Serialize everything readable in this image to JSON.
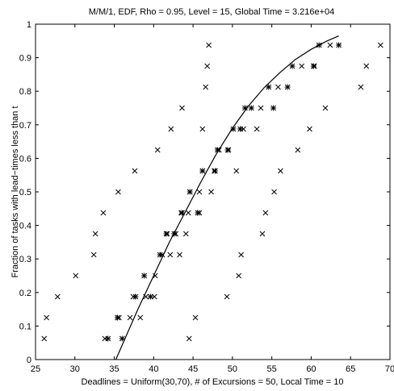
{
  "chart_data": {
    "type": "scatter",
    "title": "M/M/1, EDF, Rho = 0.95, Level = 15,  Global Time = 3.216e+04",
    "xlabel": "Deadlines = Uniform(30,70), # of Excursions = 50, Local Time = 10",
    "ylabel": "Fraction of tasks with lead−times less than t",
    "xlim": [
      25,
      70
    ],
    "ylim": [
      0,
      1
    ],
    "xticks": [
      "25",
      "30",
      "35",
      "40",
      "45",
      "50",
      "55",
      "60",
      "65",
      "70"
    ],
    "yticks": [
      "0",
      "0.1",
      "0.2",
      "0.3",
      "0.4",
      "0.5",
      "0.6",
      "0.7",
      "0.8",
      "0.9",
      "1"
    ],
    "grid": false,
    "series": [
      {
        "marker": "x",
        "color": "#000000",
        "points": [
          [
            26.1,
            0.0625
          ],
          [
            26.4,
            0.125
          ],
          [
            27.8,
            0.1875
          ],
          [
            30.1,
            0.25
          ],
          [
            32.4,
            0.3125
          ],
          [
            32.6,
            0.375
          ],
          [
            33.6,
            0.4375
          ],
          [
            35.5,
            0.5
          ],
          [
            37.6,
            0.5625
          ],
          [
            40.5,
            0.625
          ],
          [
            42.2,
            0.6875
          ],
          [
            43.6,
            0.75
          ],
          [
            46.6,
            0.8125
          ],
          [
            46.8,
            0.875
          ],
          [
            47.0,
            0.9375
          ],
          [
            33.8,
            0.0625
          ],
          [
            35.6,
            0.125
          ],
          [
            37.0,
            0.125
          ],
          [
            37.4,
            0.1875
          ],
          [
            38.3,
            0.125
          ],
          [
            39.0,
            0.1875
          ],
          [
            40.1,
            0.1875
          ],
          [
            40.2,
            0.25
          ],
          [
            41.1,
            0.3125
          ],
          [
            41.7,
            0.375
          ],
          [
            42.1,
            0.3125
          ],
          [
            42.8,
            0.375
          ],
          [
            43.3,
            0.3125
          ],
          [
            43.5,
            0.4375
          ],
          [
            44.1,
            0.375
          ],
          [
            44.4,
            0.4375
          ],
          [
            44.5,
            0.0625
          ],
          [
            44.6,
            0.5
          ],
          [
            45.3,
            0.125
          ],
          [
            45.8,
            0.4375
          ],
          [
            45.8,
            0.5
          ],
          [
            46.2,
            0.5625
          ],
          [
            46.2,
            0.6875
          ],
          [
            47.3,
            0.5
          ],
          [
            47.7,
            0.5625
          ],
          [
            48.3,
            0.625
          ],
          [
            49.3,
            0.1875
          ],
          [
            49.5,
            0.625
          ],
          [
            50.5,
            0.5625
          ],
          [
            50.8,
            0.25
          ],
          [
            51.1,
            0.3125
          ],
          [
            51.4,
            0.6875
          ],
          [
            53.1,
            0.6875
          ],
          [
            53.6,
            0.75
          ],
          [
            53.8,
            0.375
          ],
          [
            54.2,
            0.4375
          ],
          [
            55.3,
            0.5
          ],
          [
            55.8,
            0.8125
          ],
          [
            56.1,
            0.5625
          ],
          [
            58.3,
            0.625
          ],
          [
            58.8,
            0.875
          ],
          [
            59.8,
            0.6875
          ],
          [
            60.4,
            0.875
          ],
          [
            61.8,
            0.75
          ],
          [
            62.4,
            0.9375
          ],
          [
            66.3,
            0.8125
          ],
          [
            67.0,
            0.875
          ],
          [
            68.8,
            0.9375
          ]
        ]
      },
      {
        "marker": "*",
        "color": "#000000",
        "points": [
          [
            34.2,
            0.0625
          ],
          [
            35.4,
            0.125
          ],
          [
            36.0,
            0.0625
          ],
          [
            37.7,
            0.1875
          ],
          [
            38.8,
            0.25
          ],
          [
            40.8,
            0.3125
          ],
          [
            41.6,
            0.375
          ],
          [
            42.6,
            0.375
          ],
          [
            43.6,
            0.4375
          ],
          [
            44.6,
            0.5
          ],
          [
            46.2,
            0.5625
          ],
          [
            48.1,
            0.625
          ],
          [
            50.1,
            0.6875
          ],
          [
            51.6,
            0.75
          ],
          [
            54.6,
            0.8125
          ],
          [
            57.6,
            0.875
          ],
          [
            61.0,
            0.9375
          ],
          [
            63.5,
            0.9375
          ],
          [
            39.6,
            0.1875
          ],
          [
            45.6,
            0.4375
          ],
          [
            47.8,
            0.5625
          ],
          [
            49.4,
            0.625
          ],
          [
            51.0,
            0.6875
          ],
          [
            52.4,
            0.75
          ],
          [
            55.2,
            0.75
          ],
          [
            57.0,
            0.8125
          ],
          [
            60.3,
            0.875
          ]
        ]
      },
      {
        "type": "line",
        "color": "#000000",
        "points": [
          [
            35.2,
            0.0
          ],
          [
            36.5,
            0.07
          ],
          [
            38.0,
            0.15
          ],
          [
            40.0,
            0.25
          ],
          [
            42.0,
            0.35
          ],
          [
            44.0,
            0.44
          ],
          [
            46.0,
            0.53
          ],
          [
            48.0,
            0.615
          ],
          [
            50.0,
            0.69
          ],
          [
            52.0,
            0.755
          ],
          [
            54.0,
            0.81
          ],
          [
            56.0,
            0.855
          ],
          [
            58.0,
            0.895
          ],
          [
            60.0,
            0.925
          ],
          [
            62.0,
            0.95
          ],
          [
            63.5,
            0.965
          ]
        ]
      }
    ]
  }
}
